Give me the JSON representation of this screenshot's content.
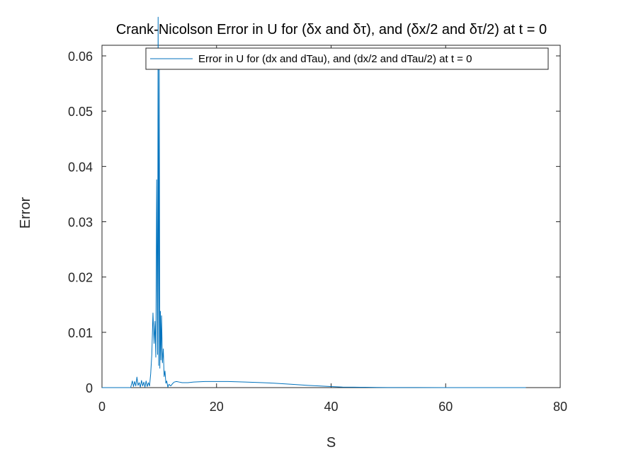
{
  "chart_data": {
    "type": "line",
    "title": "Crank-Nicolson Error in U for (δx and δτ), and (δx/2 and δτ/2) at t = 0",
    "xlabel": "S",
    "ylabel": "Error",
    "xlim": [
      0,
      80
    ],
    "ylim": [
      0,
      0.063
    ],
    "xticks": [
      0,
      20,
      40,
      60,
      80
    ],
    "yticks": [
      0,
      0.01,
      0.02,
      0.03,
      0.04,
      0.05,
      0.06
    ],
    "xtick_labels": [
      "0",
      "20",
      "40",
      "60",
      "80"
    ],
    "ytick_labels": [
      "0",
      "0.01",
      "0.02",
      "0.03",
      "0.04",
      "0.05",
      "0.06"
    ],
    "grid": false,
    "legend_position": "top-right",
    "colors": {
      "series": "#0072BD",
      "axes": "#262626"
    },
    "series": [
      {
        "name": "Error in U for (dx and dTau), and (dx/2 and dTau/2) at t = 0",
        "x": [
          0,
          5.0,
          5.3,
          5.5,
          5.7,
          5.9,
          6.1,
          6.3,
          6.5,
          6.7,
          6.9,
          7.1,
          7.3,
          7.5,
          7.7,
          7.9,
          8.1,
          8.3,
          8.5,
          8.7,
          8.9,
          9.1,
          9.25,
          9.4,
          9.55,
          9.7,
          9.8,
          9.9,
          10.0,
          10.1,
          10.2,
          10.3,
          10.4,
          10.55,
          10.7,
          10.85,
          11.0,
          11.15,
          11.3,
          11.5,
          11.7,
          12.0,
          12.3,
          12.6,
          13.0,
          13.5,
          14.0,
          15.0,
          16.0,
          18.0,
          20.0,
          22.0,
          25.0,
          28.0,
          30.0,
          33.0,
          36.0,
          40.0,
          42.0,
          44.0,
          46.0,
          48.0,
          50.0,
          55.0,
          60.0,
          70.0,
          74.0
        ],
        "y": [
          0,
          0,
          0.0012,
          0.0002,
          0.0011,
          0.0003,
          0.0019,
          0.0004,
          0.0009,
          0.0001,
          0.0013,
          0.0003,
          0.001,
          0.0001,
          0.0012,
          0.0002,
          0.0009,
          0.0003,
          0.0025,
          0.006,
          0.0135,
          0.008,
          0.012,
          0.0055,
          0.0376,
          0.006,
          0.067,
          0.004,
          0.058,
          0.0035,
          0.0138,
          0.005,
          0.013,
          0.0045,
          0.007,
          0.002,
          0.003,
          0.0008,
          0.0012,
          0.0001,
          0.0006,
          0.0003,
          0.0007,
          0.001,
          0.0011,
          0.001,
          0.0009,
          0.0009,
          0.001,
          0.0011,
          0.0011,
          0.0011,
          0.001,
          0.0009,
          0.0008,
          0.0006,
          0.0004,
          0.0002,
          0.0001,
          8e-05,
          6e-05,
          4e-05,
          2e-05,
          1e-05,
          0,
          0,
          0
        ]
      }
    ]
  }
}
